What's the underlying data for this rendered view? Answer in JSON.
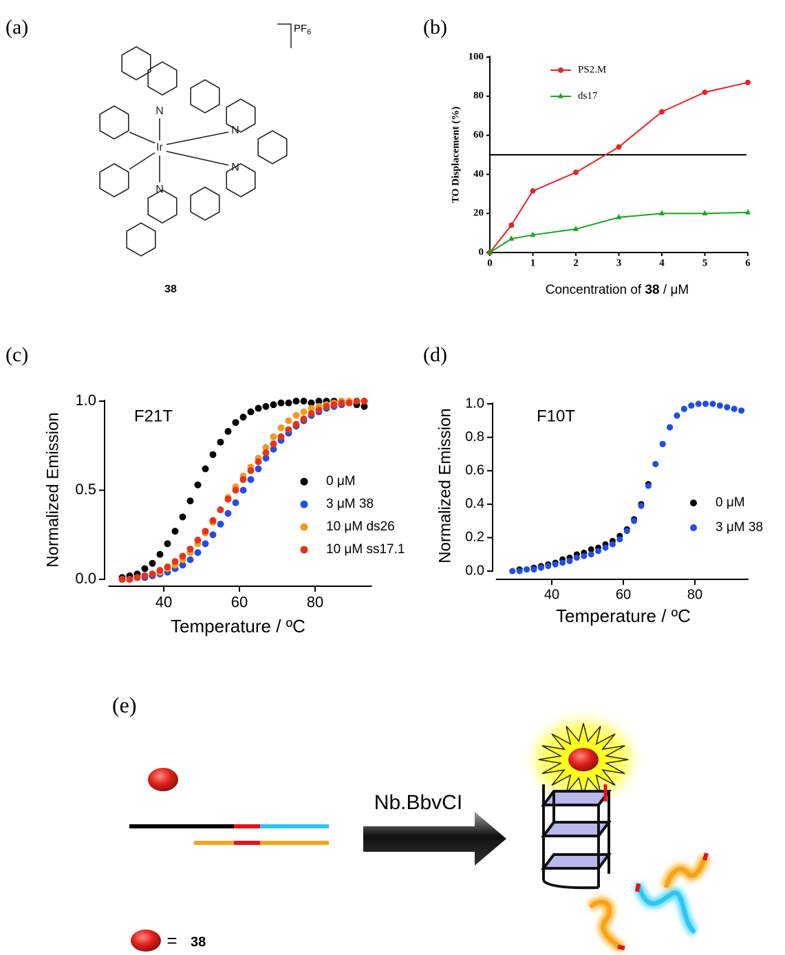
{
  "panel_a": {
    "panel_label": "(a)",
    "metal": "Ir",
    "atoms": [
      "N",
      "N",
      "N",
      "N"
    ],
    "counterion": {
      "symbol": "PF",
      "subscript": "6"
    },
    "compound": "38"
  },
  "panel_e": {
    "panel_label": "(e)",
    "enzyme": "Nb.BbvCI",
    "key_equals": "=",
    "key_compound": "38"
  },
  "chart_data": [
    {
      "type": "line",
      "panel_label": "(b)",
      "y_label": "TO Displacement (%)",
      "x_label": [
        "Concentration of",
        "38",
        "/ μM"
      ],
      "x": [
        0,
        0.5,
        1,
        2,
        3,
        4,
        5,
        6
      ],
      "series": [
        {
          "name": "PS2.M",
          "color": "#e8231f",
          "marker": "circle",
          "values": [
            0,
            14,
            31.5,
            41,
            54,
            72,
            82,
            87
          ]
        },
        {
          "name": "ds17",
          "color": "#17a81a",
          "marker": "triangle",
          "values": [
            0,
            7,
            9,
            12,
            18,
            20,
            20,
            20.5
          ]
        }
      ],
      "reference_line": 50,
      "xlim": [
        0,
        6
      ],
      "ylim": [
        0,
        100
      ],
      "xticks": [
        0,
        1,
        2,
        3,
        4,
        5,
        6
      ],
      "yticks": [
        0,
        20,
        40,
        60,
        80,
        100
      ],
      "legend": "top-left"
    },
    {
      "type": "scatter",
      "panel_label": "(c)",
      "annotation": "F21T",
      "y_label": "Normalized Emission",
      "x_label": "Temperature / ºC",
      "x": [
        29,
        31,
        33,
        35,
        37,
        39,
        41,
        43,
        45,
        47,
        49,
        51,
        53,
        55,
        57,
        59,
        61,
        63,
        65,
        67,
        69,
        71,
        73,
        75,
        77,
        79,
        81,
        83,
        85,
        87,
        89,
        91,
        93
      ],
      "series": [
        {
          "name": "0 μM",
          "color": "#000000",
          "values": [
            0.01,
            0.02,
            0.03,
            0.06,
            0.09,
            0.14,
            0.2,
            0.27,
            0.35,
            0.44,
            0.53,
            0.62,
            0.7,
            0.77,
            0.83,
            0.88,
            0.91,
            0.94,
            0.96,
            0.97,
            0.98,
            0.99,
            0.99,
            1.0,
            1.0,
            0.99,
            1.0,
            1.0,
            1.0,
            1.0,
            0.99,
            0.98,
            0.97
          ]
        },
        {
          "name": "3 μM 38",
          "color": "#1f4fe8",
          "values": [
            0,
            0,
            0.01,
            0.01,
            0.02,
            0.03,
            0.04,
            0.06,
            0.08,
            0.11,
            0.15,
            0.2,
            0.25,
            0.31,
            0.37,
            0.43,
            0.5,
            0.56,
            0.62,
            0.68,
            0.73,
            0.78,
            0.82,
            0.86,
            0.89,
            0.92,
            0.94,
            0.96,
            0.97,
            0.98,
            0.99,
            1.0,
            1.0
          ]
        },
        {
          "name": "10 μM ds26",
          "color": "#f39a1a",
          "values": [
            0,
            0,
            0.01,
            0.02,
            0.03,
            0.04,
            0.06,
            0.08,
            0.11,
            0.15,
            0.2,
            0.26,
            0.32,
            0.39,
            0.46,
            0.52,
            0.58,
            0.63,
            0.68,
            0.74,
            0.8,
            0.85,
            0.89,
            0.92,
            0.94,
            0.96,
            0.97,
            0.98,
            0.99,
            1.0,
            1.0,
            1.0,
            1.0
          ]
        },
        {
          "name": "10 μM ss17.1",
          "color": "#e8321a",
          "values": [
            0,
            0,
            0.01,
            0.02,
            0.03,
            0.05,
            0.07,
            0.1,
            0.13,
            0.17,
            0.22,
            0.27,
            0.33,
            0.39,
            0.45,
            0.5,
            0.56,
            0.61,
            0.66,
            0.71,
            0.76,
            0.8,
            0.84,
            0.87,
            0.9,
            0.93,
            0.95,
            0.97,
            0.98,
            0.99,
            0.99,
            1.0,
            1.0
          ]
        }
      ],
      "xlim": [
        25,
        95
      ],
      "ylim": [
        0,
        1
      ],
      "xticks": [
        40,
        60,
        80
      ],
      "yticks": [
        {
          "value": 0,
          "label": "0.0"
        },
        {
          "value": 0.5,
          "label": "0.5"
        },
        {
          "value": 1,
          "label": "1.0"
        }
      ],
      "legend": "right"
    },
    {
      "type": "scatter",
      "panel_label": "(d)",
      "annotation": "F10T",
      "y_label": "Normalized Emission",
      "x_label": "Temperature / ºC",
      "x": [
        29,
        31,
        33,
        35,
        37,
        39,
        41,
        43,
        45,
        47,
        49,
        51,
        53,
        55,
        57,
        59,
        61,
        63,
        65,
        67,
        69,
        71,
        73,
        75,
        77,
        79,
        81,
        83,
        85,
        87,
        89,
        91,
        93
      ],
      "series": [
        {
          "name": "0 μM",
          "color": "#000000",
          "values": [
            0.0,
            0.01,
            0.01,
            0.02,
            0.03,
            0.04,
            0.05,
            0.07,
            0.08,
            0.1,
            0.11,
            0.13,
            0.14,
            0.16,
            0.18,
            0.21,
            0.25,
            0.31,
            0.4,
            0.52,
            0.64,
            0.76,
            0.86,
            0.93,
            0.97,
            0.99,
            1.0,
            1.0,
            1.0,
            0.99,
            0.98,
            0.97,
            0.96
          ]
        },
        {
          "name": "3 μM 38",
          "color": "#1f4fe8",
          "values": [
            0,
            0,
            0.01,
            0.01,
            0.02,
            0.03,
            0.04,
            0.05,
            0.06,
            0.08,
            0.09,
            0.1,
            0.12,
            0.14,
            0.16,
            0.19,
            0.24,
            0.3,
            0.39,
            0.51,
            0.64,
            0.76,
            0.86,
            0.93,
            0.97,
            0.99,
            1.0,
            1.0,
            1.0,
            0.99,
            0.98,
            0.97,
            0.96
          ]
        }
      ],
      "xlim": [
        24,
        95
      ],
      "ylim": [
        0,
        1
      ],
      "xticks": [
        40,
        60,
        80
      ],
      "yticks": [
        {
          "value": 0,
          "label": "0.0"
        },
        {
          "value": 0.2,
          "label": "0.2"
        },
        {
          "value": 0.4,
          "label": "0.4"
        },
        {
          "value": 0.6,
          "label": "0.6"
        },
        {
          "value": 0.8,
          "label": "0.8"
        },
        {
          "value": 1,
          "label": "1.0"
        }
      ],
      "legend": "right"
    }
  ]
}
